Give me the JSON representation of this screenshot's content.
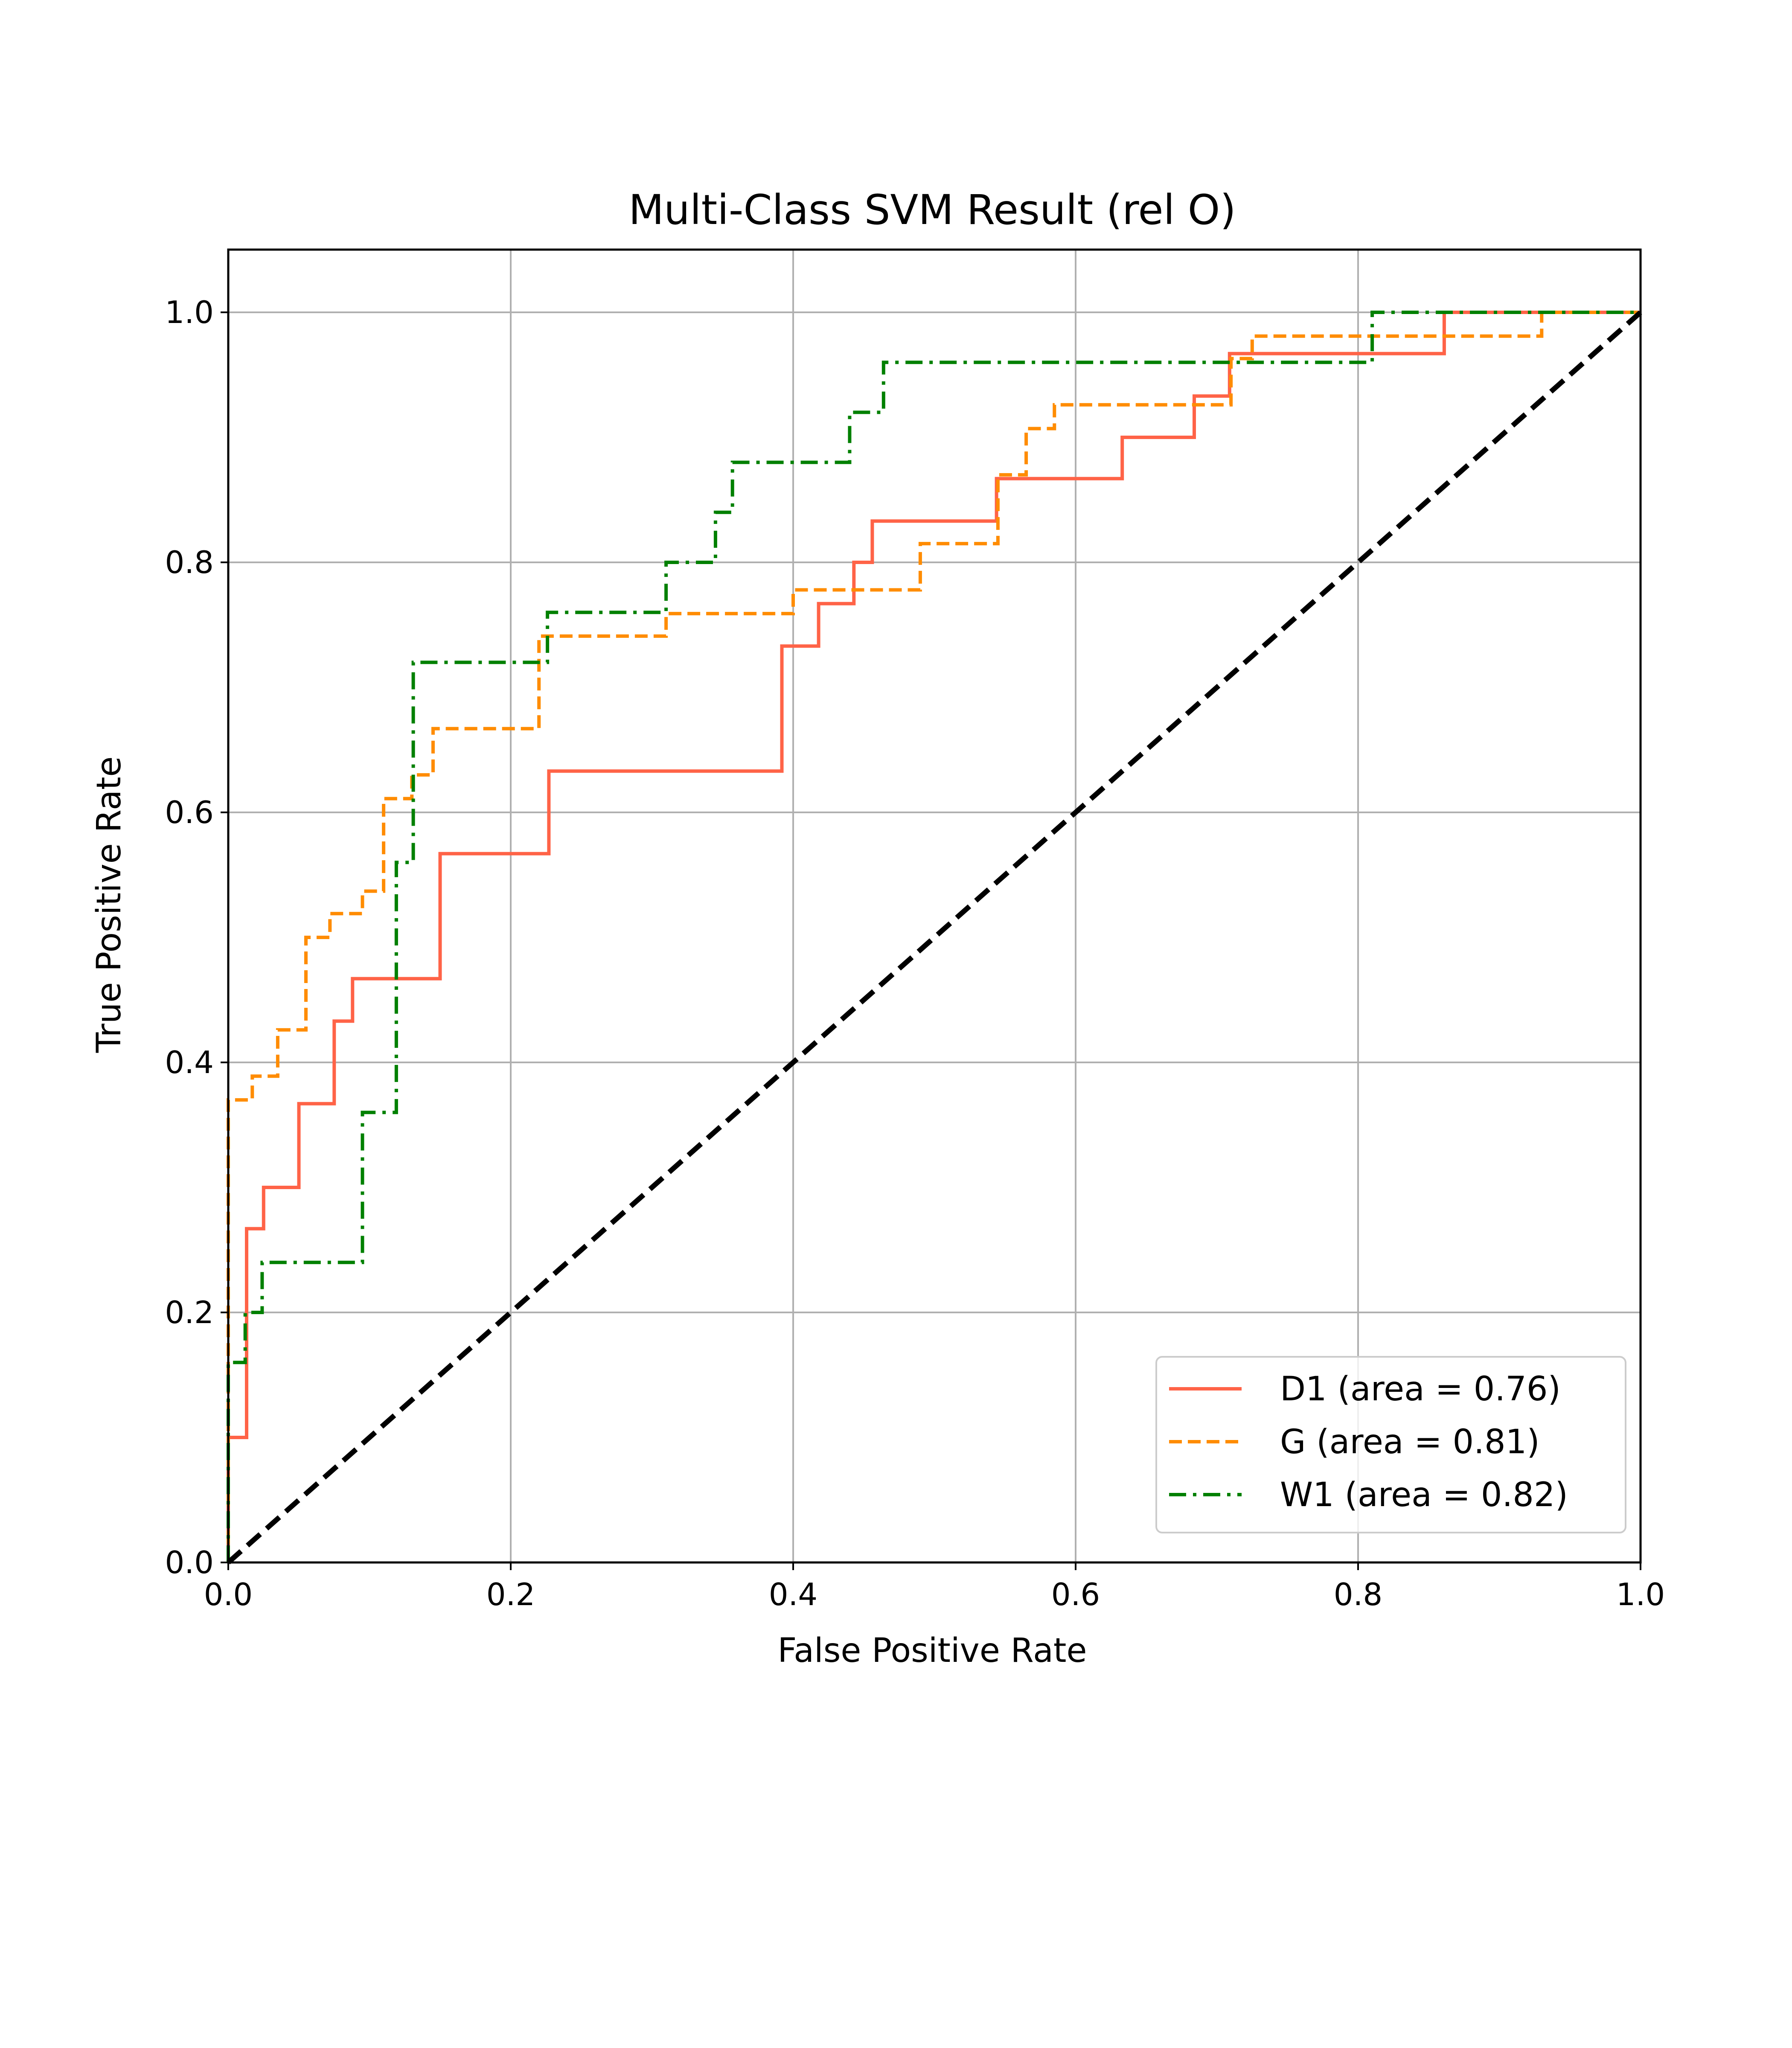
{
  "chart_data": {
    "type": "line",
    "title": "Multi-Class SVM Result (rel O)",
    "xlabel": "False Positive Rate",
    "ylabel": "True Positive Rate",
    "xlim": [
      0.0,
      1.0
    ],
    "ylim": [
      0.0,
      1.05
    ],
    "xticks": [
      0.0,
      0.2,
      0.4,
      0.6,
      0.8,
      1.0
    ],
    "yticks": [
      0.0,
      0.2,
      0.4,
      0.6,
      0.8,
      1.0
    ],
    "tick_labels_x": [
      "0.0",
      "0.2",
      "0.4",
      "0.6",
      "0.8",
      "1.0"
    ],
    "tick_labels_y": [
      "0.0",
      "0.2",
      "0.4",
      "0.6",
      "0.8",
      "1.0"
    ],
    "grid": true,
    "legend_position": "lower-right",
    "series": [
      {
        "name": "D1 (area = 0.76)",
        "color": "#ff6347",
        "style": "solid",
        "x": [
          0.0,
          0.0,
          0.0,
          0.013,
          0.013,
          0.025,
          0.025,
          0.05,
          0.05,
          0.075,
          0.075,
          0.088,
          0.088,
          0.15,
          0.15,
          0.227,
          0.227,
          0.392,
          0.392,
          0.418,
          0.418,
          0.443,
          0.443,
          0.456,
          0.456,
          0.544,
          0.544,
          0.633,
          0.633,
          0.684,
          0.684,
          0.709,
          0.709,
          0.861,
          0.861,
          1.0
        ],
        "y": [
          0.0,
          0.1,
          0.1,
          0.1,
          0.267,
          0.267,
          0.3,
          0.3,
          0.367,
          0.367,
          0.433,
          0.433,
          0.467,
          0.467,
          0.567,
          0.567,
          0.633,
          0.633,
          0.733,
          0.733,
          0.767,
          0.767,
          0.8,
          0.8,
          0.833,
          0.833,
          0.867,
          0.867,
          0.9,
          0.9,
          0.933,
          0.933,
          0.967,
          0.967,
          1.0,
          1.0
        ]
      },
      {
        "name": "G (area = 0.81)",
        "color": "#ff8c00",
        "style": "dashed",
        "x": [
          0.0,
          0.0,
          0.017,
          0.017,
          0.035,
          0.035,
          0.055,
          0.055,
          0.072,
          0.072,
          0.095,
          0.095,
          0.11,
          0.11,
          0.13,
          0.13,
          0.145,
          0.145,
          0.22,
          0.22,
          0.31,
          0.31,
          0.4,
          0.4,
          0.49,
          0.49,
          0.545,
          0.545,
          0.565,
          0.565,
          0.585,
          0.585,
          0.71,
          0.71,
          0.725,
          0.725,
          0.93,
          0.93,
          1.0
        ],
        "y": [
          0.0,
          0.37,
          0.37,
          0.389,
          0.389,
          0.426,
          0.426,
          0.5,
          0.5,
          0.519,
          0.519,
          0.537,
          0.537,
          0.611,
          0.611,
          0.63,
          0.63,
          0.667,
          0.667,
          0.741,
          0.741,
          0.759,
          0.759,
          0.778,
          0.778,
          0.815,
          0.815,
          0.87,
          0.87,
          0.907,
          0.907,
          0.926,
          0.926,
          0.963,
          0.963,
          0.981,
          0.981,
          1.0,
          1.0
        ]
      },
      {
        "name": "W1 (area = 0.82)",
        "color": "#008000",
        "style": "dashdot",
        "x": [
          0.0,
          0.0,
          0.012,
          0.012,
          0.024,
          0.024,
          0.095,
          0.095,
          0.119,
          0.119,
          0.131,
          0.131,
          0.226,
          0.226,
          0.31,
          0.31,
          0.345,
          0.345,
          0.357,
          0.357,
          0.44,
          0.44,
          0.464,
          0.464,
          0.81,
          0.81,
          1.0
        ],
        "y": [
          0.0,
          0.16,
          0.16,
          0.2,
          0.2,
          0.24,
          0.24,
          0.36,
          0.36,
          0.56,
          0.56,
          0.72,
          0.72,
          0.76,
          0.76,
          0.8,
          0.8,
          0.84,
          0.84,
          0.88,
          0.88,
          0.92,
          0.92,
          0.96,
          0.96,
          1.0,
          1.0
        ]
      },
      {
        "name": "",
        "color": "#000000",
        "style": "dashed",
        "x": [
          0.0,
          1.0
        ],
        "y": [
          0.0,
          1.0
        ]
      }
    ]
  }
}
